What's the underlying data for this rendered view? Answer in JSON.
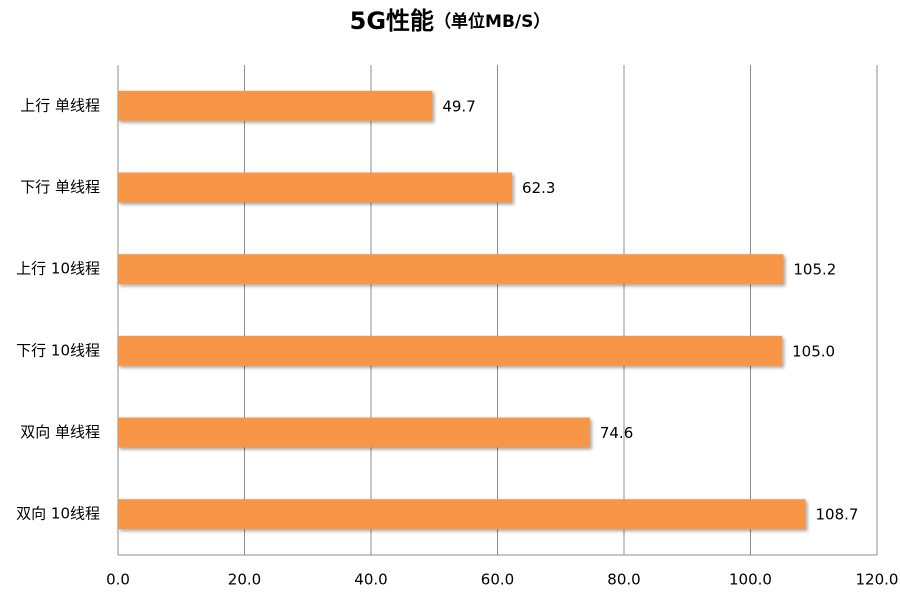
{
  "chart_data": {
    "type": "hbar",
    "title": "5G性能",
    "subtitle": "（单位MB/S）",
    "categories": [
      "上行 单线程",
      "下行 单线程",
      "上行 10线程",
      "下行 10线程",
      "双向 单线程",
      "双向 10线程"
    ],
    "values": [
      49.7,
      62.3,
      105.2,
      105.0,
      74.6,
      108.7
    ],
    "value_labels": [
      "49.7",
      "62.3",
      "105.2",
      "105.0",
      "74.6",
      "108.7"
    ],
    "color": "#f79646",
    "xlim": [
      0,
      120
    ],
    "xticks": [
      {
        "value": 0,
        "label": "0.0"
      },
      {
        "value": 20,
        "label": "20.0"
      },
      {
        "value": 40,
        "label": "40.0"
      },
      {
        "value": 60,
        "label": "60.0"
      },
      {
        "value": 80,
        "label": "80.0"
      },
      {
        "value": 100,
        "label": "100.0"
      },
      {
        "value": 120,
        "label": "120.0"
      }
    ],
    "grid": true
  }
}
